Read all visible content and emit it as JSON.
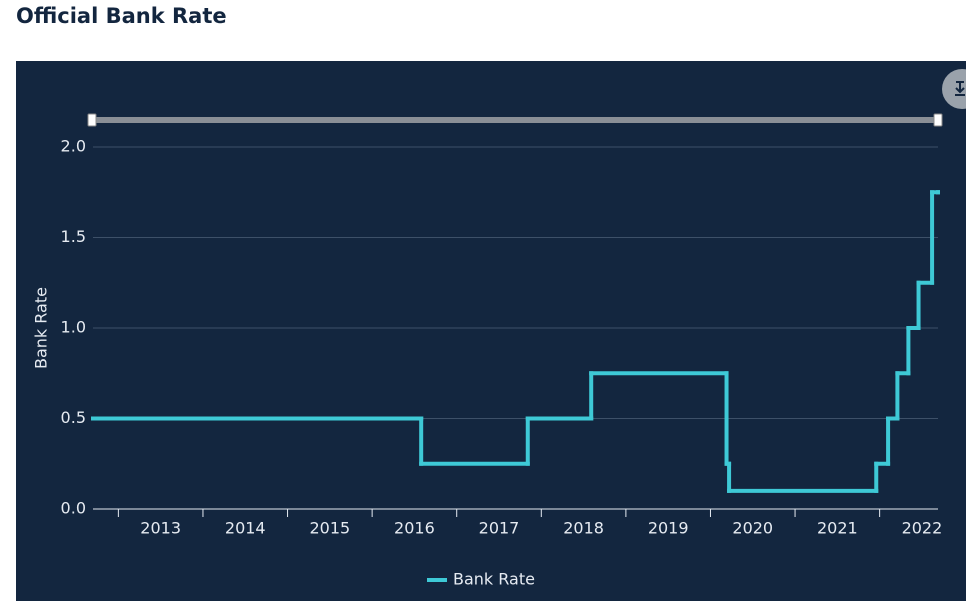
{
  "chart_data": {
    "type": "line",
    "title": "Official Bank Rate",
    "ylabel": "Bank Rate",
    "x": [
      2012.7,
      2016.58,
      2017.84,
      2018.59,
      2020.19,
      2020.22,
      2021.96,
      2022.1,
      2022.21,
      2022.34,
      2022.46,
      2022.62,
      2022.69
    ],
    "series": [
      {
        "name": "Bank Rate",
        "color": "#3ec9d6",
        "values": [
          0.5,
          0.25,
          0.5,
          0.75,
          0.25,
          0.1,
          0.25,
          0.5,
          0.75,
          1.0,
          1.25,
          1.75,
          1.75
        ]
      }
    ],
    "step": true,
    "xlim": [
      2012.7,
      2022.69
    ],
    "xticks": [
      2013,
      2014,
      2015,
      2016,
      2017,
      2018,
      2019,
      2020,
      2021,
      2022
    ],
    "ylim": [
      0,
      2
    ],
    "yticks": [
      {
        "value": 0,
        "label": "0.0"
      },
      0.5,
      {
        "value": 1,
        "label": "1.0"
      },
      1.5,
      {
        "value": 2,
        "label": "2.0"
      }
    ],
    "grid": true,
    "legend": "bottom"
  }
}
